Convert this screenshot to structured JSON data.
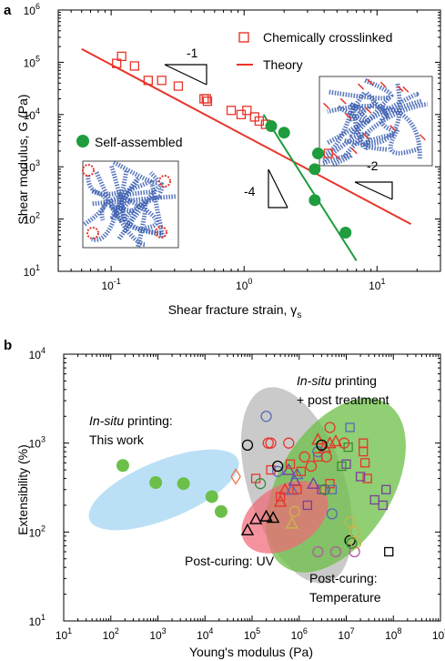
{
  "chart_data": [
    {
      "panel": "a",
      "type": "scatter",
      "xscale": "log",
      "yscale": "log",
      "xlim": [
        0.04,
        30
      ],
      "ylim": [
        10,
        1000000
      ],
      "xlabel": "Shear fracture strain, γ",
      "xlabel_sub": "s",
      "ylabel": "Shear modulus, G (Pa)",
      "xticks": [
        {
          "v": 0.1,
          "b": "10",
          "e": "-1"
        },
        {
          "v": 1,
          "b": "10",
          "e": "0"
        },
        {
          "v": 10,
          "b": "10",
          "e": "1"
        }
      ],
      "yticks": [
        {
          "v": 10,
          "b": "10",
          "e": "1"
        },
        {
          "v": 100,
          "b": "10",
          "e": "2"
        },
        {
          "v": 1000,
          "b": "10",
          "e": "3"
        },
        {
          "v": 10000,
          "b": "10",
          "e": "4"
        },
        {
          "v": 100000,
          "b": "10",
          "e": "5"
        },
        {
          "v": 1000000,
          "b": "10",
          "e": "6"
        }
      ],
      "legend": [
        {
          "label": "Chemically crosslinked",
          "marker": "open-square",
          "color": "#e8352b"
        },
        {
          "label": "Theory",
          "marker": "line",
          "color": "#e8352b"
        }
      ],
      "series": [
        {
          "name": "Chemically crosslinked",
          "marker": "open-square",
          "color": "#e8352b",
          "x": [
            0.11,
            0.12,
            0.15,
            0.19,
            0.24,
            0.32,
            0.5,
            0.52,
            0.53,
            0.8,
            0.95,
            1.05,
            1.2,
            1.3,
            1.45,
            4.3
          ],
          "y": [
            95000,
            130000,
            85000,
            45000,
            45000,
            35000,
            20000,
            20000,
            18000,
            12000,
            10000,
            12000,
            9000,
            7500,
            6500,
            1800
          ]
        },
        {
          "name": "Self-assembled",
          "marker": "filled-circle",
          "color": "#1e9c3e",
          "x": [
            1.6,
            2.0,
            3.4,
            3.4,
            3.6,
            5.8
          ],
          "y": [
            6000,
            4500,
            900,
            230,
            1800,
            55
          ]
        },
        {
          "name": "Theory",
          "type": "line",
          "color": "#e8352b",
          "x": [
            0.06,
            18
          ],
          "y": [
            180000,
            80
          ]
        },
        {
          "type": "line",
          "color": "#1e9c3e",
          "x": [
            1.4,
            7
          ],
          "y": [
            10000,
            16
          ]
        }
      ],
      "annotations": [
        {
          "text": "Self-assembled"
        },
        {
          "text": "-1"
        },
        {
          "text": "-4"
        },
        {
          "text": "-2"
        }
      ]
    },
    {
      "panel": "b",
      "type": "scatter",
      "xscale": "log",
      "yscale": "log",
      "xlim": [
        10,
        1000000000
      ],
      "ylim": [
        10,
        10000
      ],
      "xlabel": "Young's modulus (Pa)",
      "ylabel": "Extensibility (%)",
      "xticks": [
        {
          "v": 10,
          "b": "10",
          "e": "1"
        },
        {
          "v": 100,
          "b": "10",
          "e": "2"
        },
        {
          "v": 1000,
          "b": "10",
          "e": "3"
        },
        {
          "v": 10000,
          "b": "10",
          "e": "4"
        },
        {
          "v": 100000,
          "b": "10",
          "e": "5"
        },
        {
          "v": 1000000,
          "b": "10",
          "e": "6"
        },
        {
          "v": 10000000,
          "b": "10",
          "e": "7"
        },
        {
          "v": 100000000,
          "b": "10",
          "e": "8"
        },
        {
          "v": 1000000000,
          "b": "10",
          "e": "9"
        }
      ],
      "yticks": [
        {
          "v": 10,
          "b": "10",
          "e": "1"
        },
        {
          "v": 100,
          "b": "10",
          "e": "2"
        },
        {
          "v": 1000,
          "b": "10",
          "e": "3"
        },
        {
          "v": 10000,
          "b": "10",
          "e": "4"
        }
      ],
      "region_labels": [
        {
          "italic": "In-situ",
          "rest": " printing:",
          "line2": "This work"
        },
        {
          "italic": "In-situ",
          "rest": " printing",
          "line2": "+ post treatment"
        },
        {
          "italic": "",
          "rest": "Post-curing: UV",
          "line2": ""
        },
        {
          "italic": "",
          "rest": "Post-curing:",
          "line2": "Temperature"
        }
      ],
      "series": [
        {
          "name": "This work",
          "marker": "filled-circle",
          "color": "#6cc04a",
          "x": [
            180,
            900,
            3500,
            14000,
            22000
          ],
          "y": [
            560,
            360,
            350,
            250,
            170
          ]
        },
        {
          "marker": "open-diamond",
          "color": "#f07a50",
          "x": [
            45000
          ],
          "y": [
            420
          ]
        },
        {
          "marker": "open-triangle",
          "color": "#000000",
          "x": [
            80000,
            120000,
            200000,
            280000
          ],
          "y": [
            105,
            140,
            150,
            145
          ]
        },
        {
          "marker": "open-triangle",
          "color": "#e8352b",
          "x": [
            2500000,
            3500000,
            4500000,
            6000000,
            500000,
            400000
          ],
          "y": [
            1100,
            900,
            1000,
            1050,
            300,
            220
          ]
        },
        {
          "marker": "open-triangle",
          "color": "#7a3f9a",
          "x": [
            600000,
            800000,
            2000000
          ],
          "y": [
            500,
            380,
            350
          ]
        },
        {
          "marker": "open-triangle",
          "color": "#5a6ab5",
          "x": [
            900000,
            700000
          ],
          "y": [
            450,
            300
          ]
        },
        {
          "marker": "open-triangle",
          "color": "#c9b44a",
          "x": [
            700000,
            4000000
          ],
          "y": [
            125,
            320
          ]
        },
        {
          "marker": "open-square",
          "color": "#e8352b",
          "x": [
            120000,
            250000,
            650000,
            1100000,
            2500000,
            4500000,
            23000000,
            23000000,
            25000000,
            28000000,
            900000,
            400000
          ],
          "y": [
            400,
            500,
            580,
            480,
            700,
            350,
            1000,
            800,
            600,
            400,
            300,
            250
          ]
        },
        {
          "marker": "open-square",
          "color": "#7a3f9a",
          "x": [
            10000000,
            20000000,
            40000000,
            60000000,
            70000000,
            3000000,
            1500000
          ],
          "y": [
            580,
            420,
            230,
            200,
            300,
            300,
            200
          ]
        },
        {
          "marker": "open-square",
          "color": "#5a6ab5",
          "x": [
            12000000,
            5000000
          ],
          "y": [
            1500,
            300
          ]
        },
        {
          "marker": "open-square",
          "color": "#3a8a3a",
          "x": [
            11000000,
            8000000
          ],
          "y": [
            900,
            550
          ]
        },
        {
          "marker": "open-square",
          "color": "#000000",
          "x": [
            80000000
          ],
          "y": [
            60
          ]
        },
        {
          "marker": "open-circle",
          "color": "#5a6ab5",
          "x": [
            200000,
            350000,
            5000000,
            2500000
          ],
          "y": [
            2000,
            480,
            160,
            800
          ]
        },
        {
          "marker": "open-circle",
          "color": "#e8352b",
          "x": [
            220000,
            250000,
            600000,
            1300000,
            1800000,
            3800000,
            4500000,
            9000000
          ],
          "y": [
            1000,
            1000,
            1000,
            700,
            550,
            700,
            1500,
            1000
          ]
        },
        {
          "marker": "open-circle",
          "color": "#000000",
          "x": [
            80000,
            350000,
            3000000,
            12000000
          ],
          "y": [
            950,
            550,
            950,
            80
          ]
        },
        {
          "marker": "open-circle",
          "color": "#b05aa0",
          "x": [
            2500000,
            6000000,
            15000000
          ],
          "y": [
            60,
            60,
            60
          ]
        },
        {
          "marker": "open-circle",
          "color": "#c9b44a",
          "x": [
            800000,
            12000000,
            15000000,
            16000000
          ],
          "y": [
            170,
            130,
            100,
            75
          ]
        },
        {
          "marker": "open-circle",
          "color": "#3a8a3a",
          "x": [
            150000,
            3500000,
            13000000
          ],
          "y": [
            350,
            300,
            75
          ]
        }
      ],
      "regions": [
        {
          "name": "This work",
          "color": "#8ecbf0",
          "opacity": 0.6
        },
        {
          "name": "Post-curing: Temperature",
          "color": "#b8b8b8",
          "opacity": 0.75
        },
        {
          "name": "In-situ printing + post treatment",
          "color": "#6bbf45",
          "opacity": 0.75
        },
        {
          "name": "Post-curing: UV",
          "color": "#f06a78",
          "opacity": 0.72
        }
      ]
    }
  ],
  "insets": [
    {
      "name": "chemically crosslinked network schematic",
      "stroke": "#3c5fb0",
      "crosslink_color": "#e8352b"
    },
    {
      "name": "self-assembled network schematic",
      "stroke": "#3c5fb0",
      "crosslink_color": "#e8352b"
    }
  ]
}
